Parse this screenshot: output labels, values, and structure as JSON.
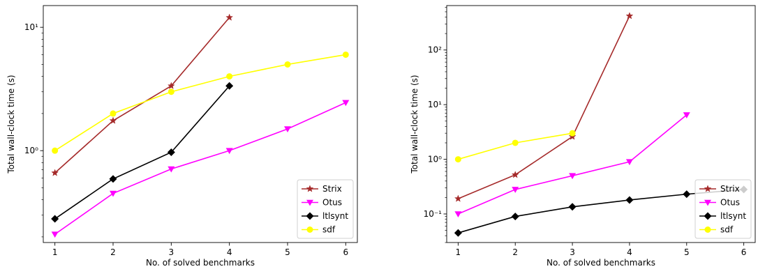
{
  "chart_data": [
    {
      "type": "line",
      "title": "",
      "xlabel": "No. of solved benchmarks",
      "ylabel": "Total wall-clock time (s)",
      "yscale": "log",
      "xlim": [
        0.8,
        6.2
      ],
      "ylim": [
        0.18,
        15
      ],
      "x_ticks": [
        1,
        2,
        3,
        4,
        5,
        6
      ],
      "x_tick_labels": [
        "1",
        "2",
        "3",
        "4",
        "5",
        "6"
      ],
      "y_ticks": [
        1,
        10
      ],
      "y_tick_labels": [
        "10⁰",
        "10¹"
      ],
      "grid": false,
      "legend_position": "lower-right",
      "series": [
        {
          "name": "Strix",
          "color": "#a52a2a",
          "marker": "star",
          "x": [
            1,
            2,
            3,
            4
          ],
          "values": [
            0.66,
            1.75,
            3.35,
            12.0
          ]
        },
        {
          "name": "Otus",
          "color": "#ff00ff",
          "marker": "triangle-down",
          "x": [
            1,
            2,
            3,
            4,
            5,
            6
          ],
          "values": [
            0.21,
            0.45,
            0.71,
            1.0,
            1.5,
            2.45
          ]
        },
        {
          "name": "ltlsynt",
          "color": "#000000",
          "marker": "diamond",
          "x": [
            1,
            2,
            3,
            4
          ],
          "values": [
            0.28,
            0.59,
            0.97,
            3.35
          ]
        },
        {
          "name": "sdf",
          "color": "#ffff00",
          "marker": "circle",
          "x": [
            1,
            2,
            3,
            4,
            5,
            6
          ],
          "values": [
            1.0,
            2.0,
            3.0,
            4.0,
            5.0,
            6.0
          ]
        }
      ]
    },
    {
      "type": "line",
      "title": "",
      "xlabel": "No. of solved benchmarks",
      "ylabel": "Total wall-clock time (s)",
      "yscale": "log",
      "xlim": [
        0.8,
        6.2
      ],
      "ylim": [
        0.03,
        650
      ],
      "x_ticks": [
        1,
        2,
        3,
        4,
        5,
        6
      ],
      "x_tick_labels": [
        "1",
        "2",
        "3",
        "4",
        "5",
        "6"
      ],
      "y_ticks": [
        0.1,
        1,
        10,
        100
      ],
      "y_tick_labels": [
        "10⁻¹",
        "10⁰",
        "10¹",
        "10²"
      ],
      "grid": false,
      "legend_position": "lower-right",
      "series": [
        {
          "name": "Strix",
          "color": "#a52a2a",
          "marker": "star",
          "x": [
            1,
            2,
            3,
            4
          ],
          "values": [
            0.19,
            0.52,
            2.6,
            420
          ]
        },
        {
          "name": "Otus",
          "color": "#ff00ff",
          "marker": "triangle-down",
          "x": [
            1,
            2,
            3,
            4,
            5
          ],
          "values": [
            0.1,
            0.28,
            0.5,
            0.9,
            6.5
          ]
        },
        {
          "name": "ltlsynt",
          "color": "#000000",
          "marker": "diamond",
          "x": [
            1,
            2,
            3,
            4,
            5,
            6
          ],
          "values": [
            0.045,
            0.09,
            0.135,
            0.18,
            0.23,
            0.28
          ]
        },
        {
          "name": "sdf",
          "color": "#ffff00",
          "marker": "circle",
          "x": [
            1,
            2,
            3
          ],
          "values": [
            1.0,
            2.0,
            3.0
          ]
        }
      ]
    }
  ]
}
